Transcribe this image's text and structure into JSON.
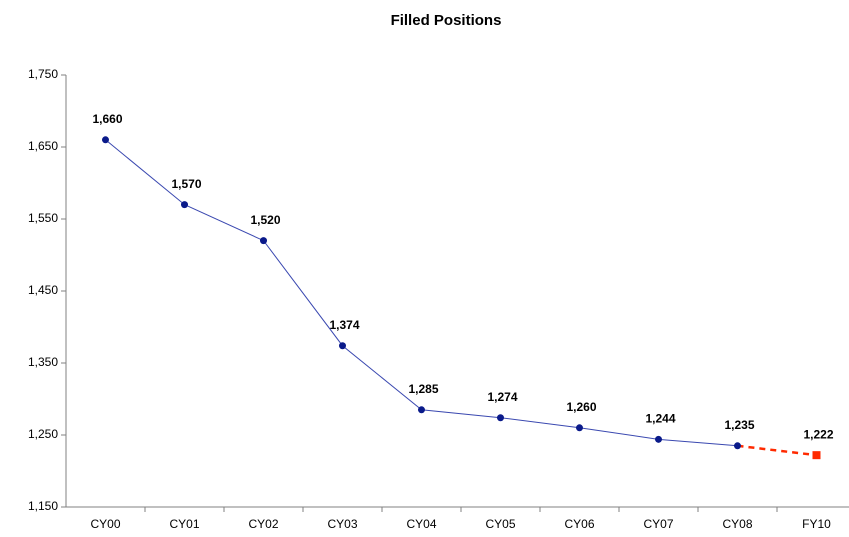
{
  "chart_data": {
    "type": "line",
    "title": "Filled Positions",
    "categories": [
      "CY00",
      "CY01",
      "CY02",
      "CY03",
      "CY04",
      "CY05",
      "CY06",
      "CY07",
      "CY08",
      "FY10"
    ],
    "series": [
      {
        "color": "#3a48b0",
        "marker_color": "#0a1a8a",
        "marker": "circle",
        "line_style": "solid",
        "values": [
          1660,
          1570,
          1520,
          1374,
          1285,
          1274,
          1260,
          1244,
          1235,
          null
        ],
        "value_labels": [
          "1,660",
          "1,570",
          "1,520",
          "1,374",
          "1,285",
          "1,274",
          "1,260",
          "1,244",
          "1,235",
          null
        ]
      },
      {
        "color": "#ff2a00",
        "marker_color": "#ff2a00",
        "marker": "square",
        "line_style": "dashed",
        "values": [
          null,
          null,
          null,
          null,
          null,
          null,
          null,
          null,
          1235,
          1222
        ],
        "value_labels": [
          null,
          null,
          null,
          null,
          null,
          null,
          null,
          null,
          null,
          "1,222"
        ]
      }
    ],
    "ylim": [
      1150,
      1750
    ],
    "yticks": [
      {
        "value": 1150,
        "label": "1,150"
      },
      {
        "value": 1250,
        "label": "1,250"
      },
      {
        "value": 1350,
        "label": "1,350"
      },
      {
        "value": 1450,
        "label": "1,450"
      },
      {
        "value": 1550,
        "label": "1,550"
      },
      {
        "value": 1650,
        "label": "1,650"
      },
      {
        "value": 1750,
        "label": "1,750"
      }
    ],
    "grid": false
  }
}
